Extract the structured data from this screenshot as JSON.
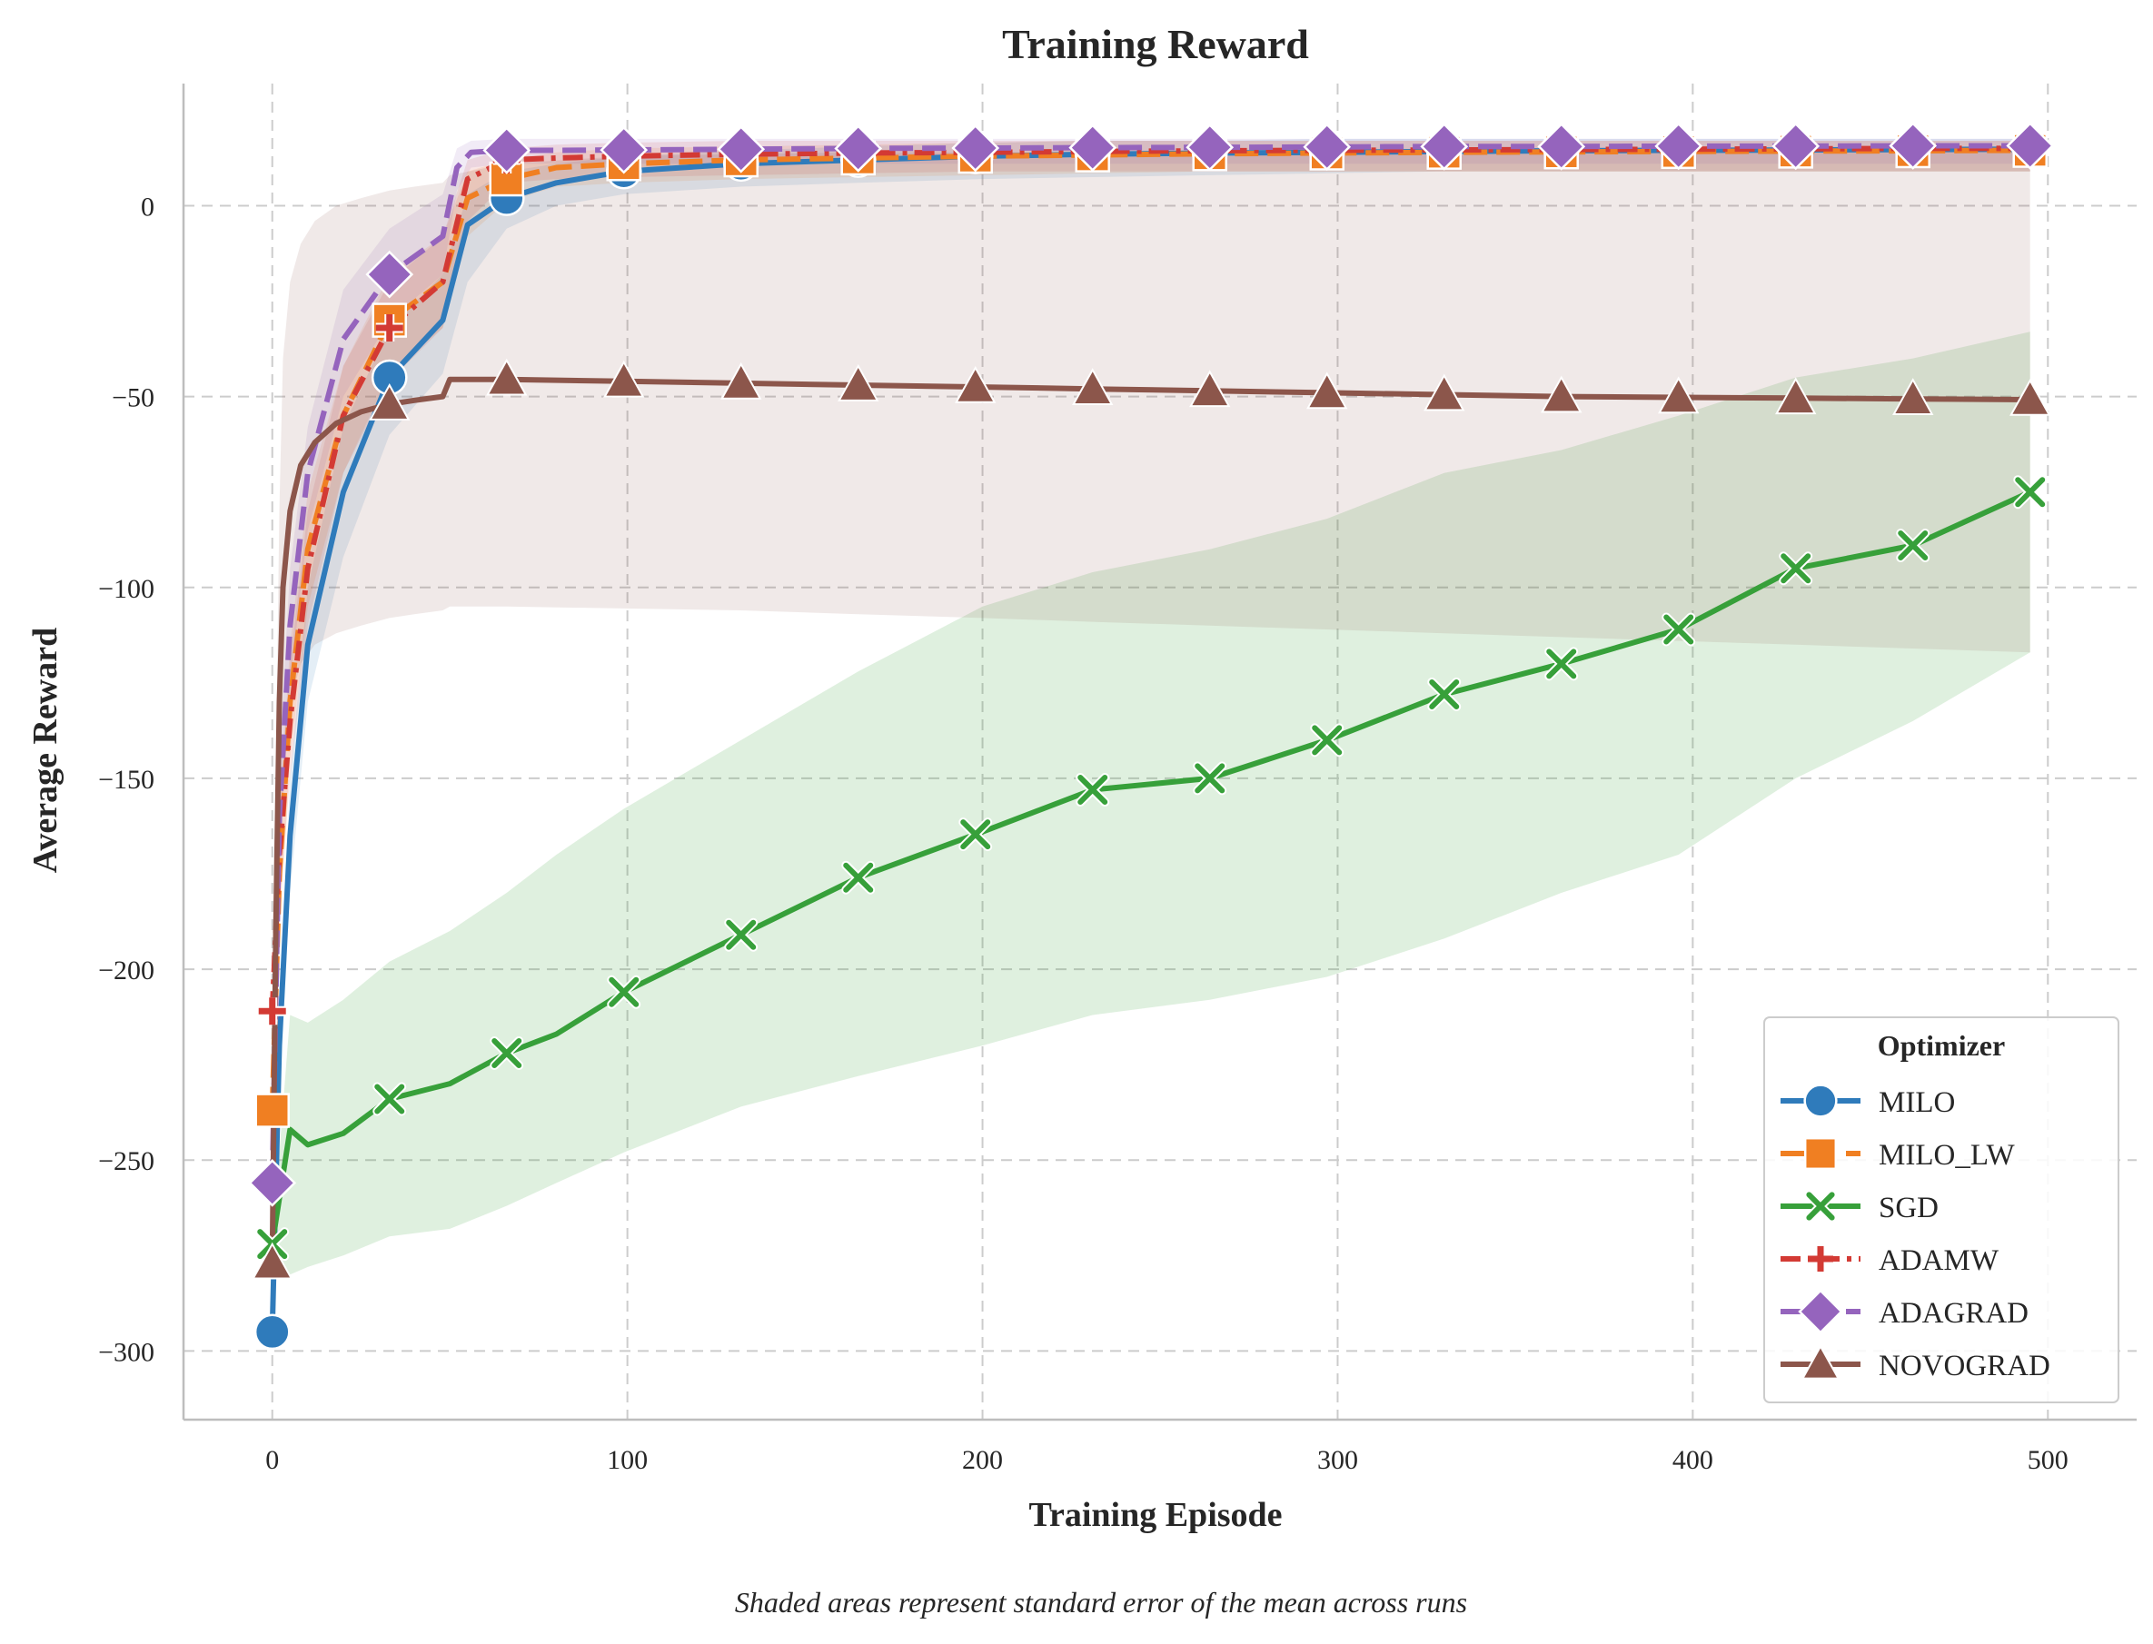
{
  "chart_data": {
    "type": "line",
    "title": "Training Reward",
    "xlabel": "Training Episode",
    "ylabel": "Average Reward",
    "caption": "Shaded areas represent standard error of the mean across runs",
    "xlim": [
      -25,
      525
    ],
    "ylim": [
      -318,
      32
    ],
    "xticks": [
      0,
      100,
      200,
      300,
      400,
      500
    ],
    "yticks": [
      0,
      -50,
      -100,
      -150,
      -200,
      -250,
      -300
    ],
    "grid": true,
    "legend": {
      "title": "Optimizer",
      "position": "bottom-right"
    },
    "series": [
      {
        "name": "MILO",
        "color": "#2f7bbb",
        "marker": "circle",
        "dash": "solid",
        "x": [
          0,
          2,
          5,
          10,
          20,
          33,
          48,
          55,
          66,
          80,
          99,
          132,
          165,
          200,
          231,
          264,
          297,
          330,
          363,
          396,
          429,
          462,
          495
        ],
        "y": [
          -295,
          -220,
          -165,
          -115,
          -75,
          -45,
          -30,
          -5,
          2,
          6,
          9,
          11,
          12,
          13,
          13.5,
          13.8,
          14,
          14.2,
          14.4,
          14.5,
          14.6,
          14.7,
          14.8
        ],
        "lower": [
          -295,
          -230,
          -180,
          -130,
          -92,
          -60,
          -44,
          -20,
          -6,
          0,
          3,
          5,
          6,
          7,
          7.5,
          8,
          8.5,
          9,
          9,
          9,
          9,
          9,
          9
        ],
        "upper": [
          -295,
          -210,
          -150,
          -100,
          -58,
          -32,
          -18,
          3,
          9,
          11,
          13,
          14.5,
          15.5,
          16.5,
          17,
          17,
          17.5,
          17.5,
          17.5,
          17.5,
          17.5,
          17.5,
          17.5
        ]
      },
      {
        "name": "MILO_LW",
        "color": "#f07f22",
        "marker": "square",
        "dash": "dashed",
        "x": [
          0,
          2,
          5,
          10,
          20,
          33,
          48,
          55,
          66,
          80,
          99,
          132,
          165,
          200,
          231,
          264,
          297,
          330,
          363,
          396,
          429,
          462,
          495
        ],
        "y": [
          -237,
          -175,
          -130,
          -90,
          -55,
          -30,
          -20,
          2,
          7,
          10,
          11,
          12,
          12.5,
          13,
          13.3,
          13.6,
          13.8,
          14,
          14.1,
          14.2,
          14.3,
          14.4,
          14.5
        ],
        "lower": [
          -237,
          -190,
          -145,
          -105,
          -70,
          -44,
          -32,
          -8,
          1,
          5,
          6,
          7,
          7.5,
          8,
          8.5,
          9,
          9,
          9,
          9,
          9,
          9,
          9,
          9
        ],
        "upper": [
          -237,
          -160,
          -115,
          -75,
          -42,
          -18,
          -8,
          9,
          12,
          14,
          15,
          15.5,
          16,
          16.5,
          17,
          17,
          17,
          17,
          17,
          17,
          17,
          17,
          17
        ]
      },
      {
        "name": "SGD",
        "color": "#37a03a",
        "marker": "x",
        "dash": "solid",
        "x": [
          0,
          5,
          10,
          20,
          33,
          50,
          66,
          80,
          99,
          132,
          165,
          200,
          231,
          264,
          297,
          330,
          363,
          396,
          429,
          462,
          495
        ],
        "y": [
          -272,
          -242,
          -246,
          -243,
          -234,
          -230,
          -222,
          -217,
          -206,
          -191,
          -176,
          -164,
          -153,
          -150,
          -140,
          -128,
          -120,
          -111,
          -95,
          -89,
          -75
        ],
        "lower": [
          -272,
          -280,
          -278,
          -275,
          -270,
          -268,
          -262,
          -256,
          -248,
          -236,
          -228,
          -220,
          -212,
          -208,
          -202,
          -192,
          -180,
          -170,
          -150,
          -135,
          -117
        ],
        "upper": [
          -272,
          -212,
          -214,
          -208,
          -198,
          -190,
          -180,
          -170,
          -158,
          -140,
          -122,
          -105,
          -96,
          -90,
          -82,
          -70,
          -64,
          -55,
          -45,
          -40,
          -33
        ]
      },
      {
        "name": "ADAMW",
        "color": "#d33a34",
        "marker": "plus",
        "dash": "dashdot",
        "x": [
          0,
          2,
          5,
          10,
          20,
          33,
          48,
          55,
          66,
          80,
          99,
          132,
          165,
          200,
          231,
          264,
          297,
          330,
          363,
          396,
          429,
          462,
          495
        ],
        "y": [
          -211,
          -170,
          -135,
          -95,
          -55,
          -32,
          -20,
          7,
          12,
          12.5,
          13,
          13.5,
          13.8,
          14,
          14.2,
          14.4,
          14.5,
          14.6,
          14.7,
          14.8,
          14.9,
          15,
          15
        ],
        "lower": [
          -211,
          -185,
          -150,
          -110,
          -70,
          -46,
          -32,
          -4,
          6,
          7,
          7.5,
          8,
          8.5,
          9,
          9,
          9,
          9,
          9,
          9,
          9,
          9,
          9,
          9
        ],
        "upper": [
          -211,
          -155,
          -120,
          -80,
          -42,
          -20,
          -8,
          12,
          15,
          16,
          16.5,
          17,
          17,
          17,
          17,
          17,
          17,
          17,
          17,
          17,
          17,
          17,
          17
        ]
      },
      {
        "name": "ADAGRAD",
        "color": "#9564bd",
        "marker": "diamond",
        "dash": "dashed",
        "x": [
          0,
          2,
          5,
          10,
          20,
          33,
          48,
          52,
          56,
          66,
          80,
          99,
          132,
          165,
          200,
          231,
          264,
          297,
          330,
          363,
          396,
          429,
          462,
          495
        ],
        "y": [
          -256,
          -160,
          -110,
          -70,
          -35,
          -18,
          -8,
          10,
          14,
          14.5,
          14.5,
          14.6,
          14.8,
          15,
          15.1,
          15.2,
          15.3,
          15.4,
          15.5,
          15.5,
          15.6,
          15.6,
          15.7,
          15.7
        ],
        "lower": [
          -256,
          -175,
          -125,
          -85,
          -50,
          -30,
          -18,
          4,
          10,
          11,
          11,
          11,
          11,
          11,
          11,
          11,
          11,
          11,
          11,
          11,
          11,
          11,
          11,
          11
        ],
        "upper": [
          -256,
          -145,
          -95,
          -58,
          -22,
          -6,
          3,
          15,
          17,
          17.5,
          17.5,
          17.5,
          17.5,
          17.5,
          17.5,
          17.5,
          17.5,
          17.5,
          17.5,
          17.5,
          17.5,
          17.5,
          17.5,
          17.5
        ]
      },
      {
        "name": "NOVOGRAD",
        "color": "#8c564b",
        "marker": "triangle",
        "dash": "solid",
        "x": [
          0,
          1,
          2,
          3,
          5,
          8,
          12,
          18,
          25,
          33,
          40,
          48,
          50,
          66,
          99,
          132,
          165,
          200,
          231,
          264,
          297,
          330,
          363,
          396,
          429,
          462,
          495
        ],
        "y": [
          -277,
          -190,
          -130,
          -100,
          -80,
          -68,
          -62,
          -57,
          -54,
          -52,
          -51,
          -50,
          -45.5,
          -45.5,
          -46,
          -46.5,
          -47,
          -47.5,
          -48,
          -48.5,
          -49,
          -49.5,
          -50,
          -50.2,
          -50.4,
          -50.6,
          -50.8
        ],
        "lower": [
          -277,
          -230,
          -180,
          -150,
          -130,
          -120,
          -115,
          -112,
          -110,
          -108,
          -107,
          -106,
          -105,
          -105,
          -105.5,
          -106,
          -107,
          -108,
          -109,
          -110,
          -111,
          -112,
          -113,
          -114,
          -115,
          -116,
          -117
        ],
        "upper": [
          -277,
          -150,
          -80,
          -40,
          -20,
          -10,
          -4,
          0,
          2,
          4,
          5,
          6,
          8,
          11,
          13,
          13.5,
          14,
          14,
          14,
          14.5,
          14.5,
          14.5,
          15,
          15,
          15,
          15,
          15
        ]
      }
    ]
  }
}
